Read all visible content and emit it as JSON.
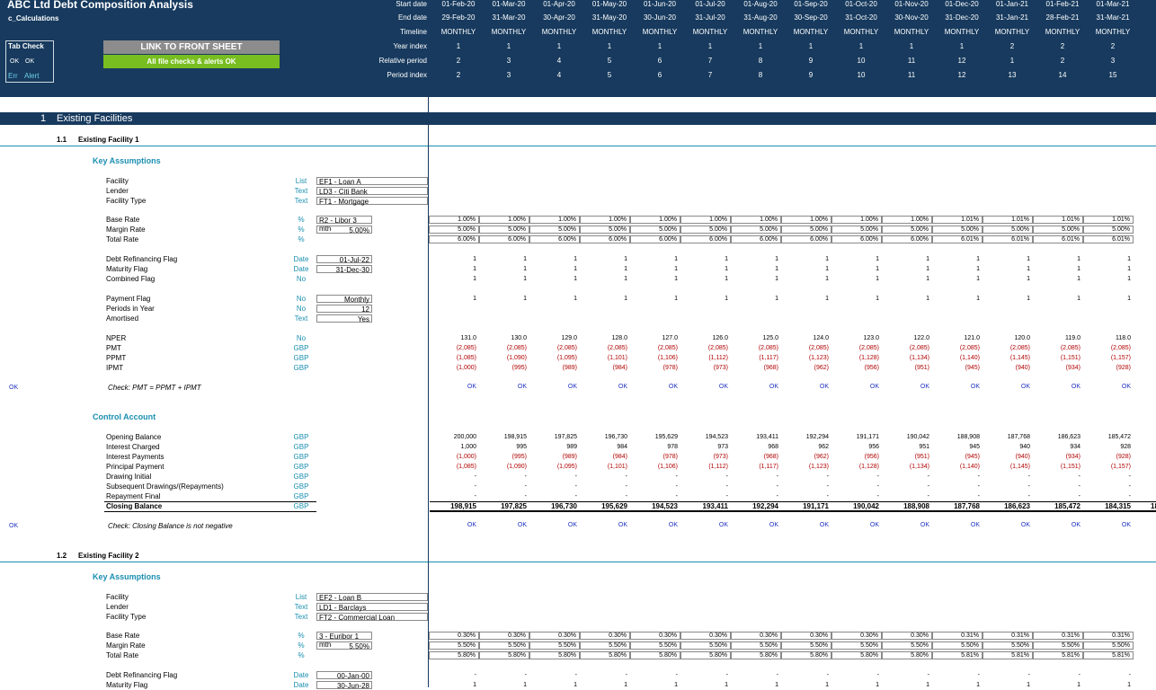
{
  "header": {
    "title": "ABC Ltd Debt Composition Analysis",
    "sheet": "c_Calculations",
    "tab_check": {
      "title": "Tab Check",
      "ok1": "OK",
      "ok2": "OK",
      "err": "Err",
      "alert": "Alert"
    },
    "link_button": "LINK TO FRONT SHEET",
    "checks_status": "All file checks & alerts OK",
    "row_labels": [
      "Start date",
      "End date",
      "Timeline",
      "Year index",
      "Relative period",
      "Period index"
    ],
    "start_dates": [
      "01-Feb-20",
      "01-Mar-20",
      "01-Apr-20",
      "01-May-20",
      "01-Jun-20",
      "01-Jul-20",
      "01-Aug-20",
      "01-Sep-20",
      "01-Oct-20",
      "01-Nov-20",
      "01-Dec-20",
      "01-Jan-21",
      "01-Feb-21",
      "01-Mar-21"
    ],
    "end_dates": [
      "29-Feb-20",
      "31-Mar-20",
      "30-Apr-20",
      "31-May-20",
      "30-Jun-20",
      "31-Jul-20",
      "31-Aug-20",
      "30-Sep-20",
      "31-Oct-20",
      "30-Nov-20",
      "31-Dec-20",
      "31-Jan-21",
      "28-Feb-21",
      "31-Mar-21"
    ],
    "timeline": [
      "MONTHLY",
      "MONTHLY",
      "MONTHLY",
      "MONTHLY",
      "MONTHLY",
      "MONTHLY",
      "MONTHLY",
      "MONTHLY",
      "MONTHLY",
      "MONTHLY",
      "MONTHLY",
      "MONTHLY",
      "MONTHLY",
      "MONTHLY",
      "MO"
    ],
    "year_index": [
      "1",
      "1",
      "1",
      "1",
      "1",
      "1",
      "1",
      "1",
      "1",
      "1",
      "1",
      "2",
      "2",
      "2"
    ],
    "relative_period": [
      "2",
      "3",
      "4",
      "5",
      "6",
      "7",
      "8",
      "9",
      "10",
      "11",
      "12",
      "1",
      "2",
      "3"
    ],
    "period_index": [
      "2",
      "3",
      "4",
      "5",
      "6",
      "7",
      "8",
      "9",
      "10",
      "11",
      "12",
      "13",
      "14",
      "15"
    ]
  },
  "section1": {
    "num": "1",
    "title": "Existing Facilities"
  },
  "facility1": {
    "num": "1.1",
    "title": "Existing Facility 1",
    "key_assumptions": "Key Assumptions",
    "info_rows": [
      {
        "label": "Facility",
        "unit": "List",
        "value": "EF1 - Loan A"
      },
      {
        "label": "Lender",
        "unit": "Text",
        "value": "LD3 - Citi Bank"
      },
      {
        "label": "Facility Type",
        "unit": "Text",
        "value": "FT1 - Mortgage"
      }
    ],
    "rate_rows": [
      {
        "label": "Base Rate",
        "unit": "%",
        "input": "R2 - Libor 3 mth",
        "values": [
          "1.00%",
          "1.00%",
          "1.00%",
          "1.00%",
          "1.00%",
          "1.00%",
          "1.00%",
          "1.00%",
          "1.00%",
          "1.00%",
          "1.01%",
          "1.01%",
          "1.01%",
          "1.01%"
        ]
      },
      {
        "label": "Margin Rate",
        "unit": "%",
        "input": "5.00%",
        "values": [
          "5.00%",
          "5.00%",
          "5.00%",
          "5.00%",
          "5.00%",
          "5.00%",
          "5.00%",
          "5.00%",
          "5.00%",
          "5.00%",
          "5.00%",
          "5.00%",
          "5.00%",
          "5.00%"
        ]
      },
      {
        "label": "Total Rate",
        "unit": "%",
        "input": "",
        "values": [
          "6.00%",
          "6.00%",
          "6.00%",
          "6.00%",
          "6.00%",
          "6.00%",
          "6.00%",
          "6.00%",
          "6.00%",
          "6.00%",
          "6.01%",
          "6.01%",
          "6.01%",
          "6.01%"
        ]
      }
    ],
    "flag_rows": [
      {
        "label": "Debt Refinancing Flag",
        "unit": "Date",
        "input": "01-Jul-22",
        "values": [
          "1",
          "1",
          "1",
          "1",
          "1",
          "1",
          "1",
          "1",
          "1",
          "1",
          "1",
          "1",
          "1",
          "1"
        ]
      },
      {
        "label": "Maturity Flag",
        "unit": "Date",
        "input": "31-Dec-30",
        "values": [
          "1",
          "1",
          "1",
          "1",
          "1",
          "1",
          "1",
          "1",
          "1",
          "1",
          "1",
          "1",
          "1",
          "1"
        ]
      },
      {
        "label": "Combined Flag",
        "unit": "No",
        "input": "",
        "values": [
          "1",
          "1",
          "1",
          "1",
          "1",
          "1",
          "1",
          "1",
          "1",
          "1",
          "1",
          "1",
          "1",
          "1"
        ]
      }
    ],
    "pay_rows": [
      {
        "label": "Payment Flag",
        "unit": "No",
        "input": "Monthly",
        "values": [
          "1",
          "1",
          "1",
          "1",
          "1",
          "1",
          "1",
          "1",
          "1",
          "1",
          "1",
          "1",
          "1",
          "1"
        ]
      },
      {
        "label": "Periods in Year",
        "unit": "No",
        "input": "12",
        "values": []
      },
      {
        "label": "Amortised",
        "unit": "Text",
        "input": "Yes",
        "values": []
      }
    ],
    "pmt_rows": [
      {
        "label": "NPER",
        "unit": "No",
        "red": false,
        "values": [
          "131.0",
          "130.0",
          "129.0",
          "128.0",
          "127.0",
          "126.0",
          "125.0",
          "124.0",
          "123.0",
          "122.0",
          "121.0",
          "120.0",
          "119.0",
          "118.0"
        ]
      },
      {
        "label": "PMT",
        "unit": "GBP",
        "red": true,
        "values": [
          "(2,085)",
          "(2,085)",
          "(2,085)",
          "(2,085)",
          "(2,085)",
          "(2,085)",
          "(2,085)",
          "(2,085)",
          "(2,085)",
          "(2,085)",
          "(2,085)",
          "(2,085)",
          "(2,085)",
          "(2,085)"
        ]
      },
      {
        "label": "PPMT",
        "unit": "GBP",
        "red": true,
        "values": [
          "(1,085)",
          "(1,090)",
          "(1,095)",
          "(1,101)",
          "(1,106)",
          "(1,112)",
          "(1,117)",
          "(1,123)",
          "(1,128)",
          "(1,134)",
          "(1,140)",
          "(1,145)",
          "(1,151)",
          "(1,157)"
        ]
      },
      {
        "label": "IPMT",
        "unit": "GBP",
        "red": true,
        "values": [
          "(1,000)",
          "(995)",
          "(989)",
          "(984)",
          "(978)",
          "(973)",
          "(968)",
          "(962)",
          "(956)",
          "(951)",
          "(945)",
          "(940)",
          "(934)",
          "(928)"
        ]
      }
    ],
    "check1": {
      "flag": "OK",
      "label": "Check: PMT = PPMT + IPMT",
      "values": [
        "OK",
        "OK",
        "OK",
        "OK",
        "OK",
        "OK",
        "OK",
        "OK",
        "OK",
        "OK",
        "OK",
        "OK",
        "OK",
        "OK"
      ]
    },
    "control_account": "Control Account",
    "control_rows": [
      {
        "label": "Opening Balance",
        "unit": "GBP",
        "red": false,
        "values": [
          "200,000",
          "198,915",
          "197,825",
          "196,730",
          "195,629",
          "194,523",
          "193,411",
          "192,294",
          "191,171",
          "190,042",
          "188,908",
          "187,768",
          "186,623",
          "185,472"
        ]
      },
      {
        "label": "Interest Charged",
        "unit": "GBP",
        "red": false,
        "values": [
          "1,000",
          "995",
          "989",
          "984",
          "978",
          "973",
          "968",
          "962",
          "956",
          "951",
          "945",
          "940",
          "934",
          "928"
        ]
      },
      {
        "label": "Interest Payments",
        "unit": "GBP",
        "red": true,
        "values": [
          "(1,000)",
          "(995)",
          "(989)",
          "(984)",
          "(978)",
          "(973)",
          "(968)",
          "(962)",
          "(956)",
          "(951)",
          "(945)",
          "(940)",
          "(934)",
          "(928)"
        ]
      },
      {
        "label": "Principal Payment",
        "unit": "GBP",
        "red": true,
        "values": [
          "(1,085)",
          "(1,090)",
          "(1,095)",
          "(1,101)",
          "(1,106)",
          "(1,112)",
          "(1,117)",
          "(1,123)",
          "(1,128)",
          "(1,134)",
          "(1,140)",
          "(1,145)",
          "(1,151)",
          "(1,157)"
        ]
      },
      {
        "label": "Drawing Initial",
        "unit": "GBP",
        "red": false,
        "values": [
          "-",
          "-",
          "-",
          "-",
          "-",
          "-",
          "-",
          "-",
          "-",
          "-",
          "-",
          "-",
          "-",
          "-"
        ]
      },
      {
        "label": "Subsequent Drawings/(Repayments)",
        "unit": "GBP",
        "red": false,
        "values": [
          "-",
          "-",
          "-",
          "-",
          "-",
          "-",
          "-",
          "-",
          "-",
          "-",
          "-",
          "-",
          "-",
          "-"
        ]
      },
      {
        "label": "Repayment Final",
        "unit": "GBP",
        "red": false,
        "values": [
          "-",
          "-",
          "-",
          "-",
          "-",
          "-",
          "-",
          "-",
          "-",
          "-",
          "-",
          "-",
          "-",
          "-"
        ]
      }
    ],
    "closing": {
      "label": "Closing Balance",
      "unit": "GBP",
      "values": [
        "198,915",
        "197,825",
        "196,730",
        "195,629",
        "194,523",
        "193,411",
        "192,294",
        "191,171",
        "190,042",
        "188,908",
        "187,768",
        "186,623",
        "185,472",
        "184,315"
      ],
      "tail": "18"
    },
    "check2": {
      "flag": "OK",
      "label": "Check: Closing Balance is not negative",
      "values": [
        "OK",
        "OK",
        "OK",
        "OK",
        "OK",
        "OK",
        "OK",
        "OK",
        "OK",
        "OK",
        "OK",
        "OK",
        "OK",
        "OK"
      ]
    }
  },
  "facility2": {
    "num": "1.2",
    "title": "Existing Facility 2",
    "key_assumptions": "Key Assumptions",
    "info_rows": [
      {
        "label": "Facility",
        "unit": "List",
        "value": "EF2 - Loan B"
      },
      {
        "label": "Lender",
        "unit": "Text",
        "value": "LD1 - Barclays"
      },
      {
        "label": "Facility Type",
        "unit": "Text",
        "value": "FT2 - Commercial Loan"
      }
    ],
    "rate_rows": [
      {
        "label": "Base Rate",
        "unit": "%",
        "input": "3 - Euribor 1 mth",
        "values": [
          "0.30%",
          "0.30%",
          "0.30%",
          "0.30%",
          "0.30%",
          "0.30%",
          "0.30%",
          "0.30%",
          "0.30%",
          "0.30%",
          "0.31%",
          "0.31%",
          "0.31%",
          "0.31%"
        ]
      },
      {
        "label": "Margin Rate",
        "unit": "%",
        "input": "5.50%",
        "values": [
          "5.50%",
          "5.50%",
          "5.50%",
          "5.50%",
          "5.50%",
          "5.50%",
          "5.50%",
          "5.50%",
          "5.50%",
          "5.50%",
          "5.50%",
          "5.50%",
          "5.50%",
          "5.50%"
        ]
      },
      {
        "label": "Total Rate",
        "unit": "%",
        "input": "",
        "values": [
          "5.80%",
          "5.80%",
          "5.80%",
          "5.80%",
          "5.80%",
          "5.80%",
          "5.80%",
          "5.80%",
          "5.80%",
          "5.80%",
          "5.81%",
          "5.81%",
          "5.81%",
          "5.81%"
        ]
      }
    ],
    "flag_rows": [
      {
        "label": "Debt Refinancing Flag",
        "unit": "Date",
        "input": "00-Jan-00",
        "values": [
          "-",
          "-",
          "-",
          "-",
          "-",
          "-",
          "-",
          "-",
          "-",
          "-",
          "-",
          "-",
          "-",
          "-"
        ]
      },
      {
        "label": "Maturity Flag",
        "unit": "Date",
        "input": "30-Jun-28",
        "values": [
          "1",
          "1",
          "1",
          "1",
          "1",
          "1",
          "1",
          "1",
          "1",
          "1",
          "1",
          "1",
          "1",
          "1"
        ]
      }
    ]
  },
  "colors": {
    "header_bg": "#173a5e",
    "accent": "#1a8fb0",
    "link_btn": "#8c8c8c",
    "status_green": "#78be20",
    "negative": "#b00000",
    "ok_text": "#1c2fc0"
  }
}
